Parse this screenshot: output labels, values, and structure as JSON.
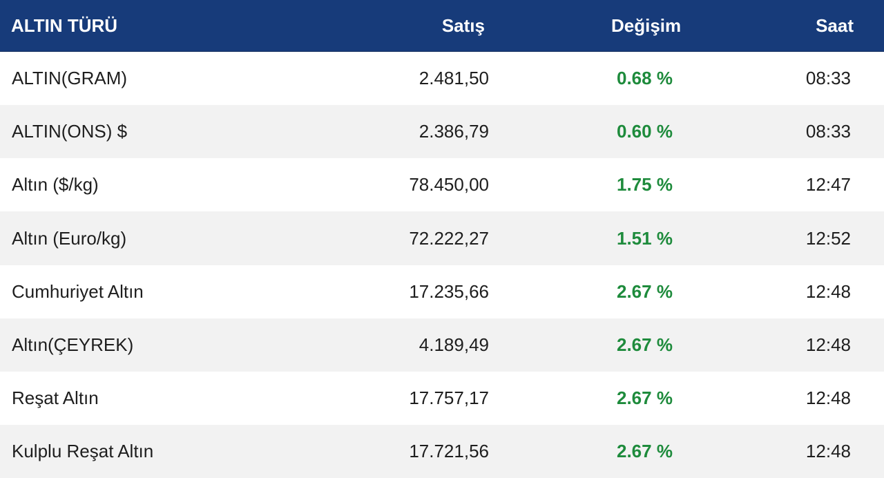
{
  "header": {
    "col_name": "ALTIN TÜRÜ",
    "col_sell": "Satış",
    "col_change": "Değişim",
    "col_time": "Saat"
  },
  "colors": {
    "header_bg": "#173b7a",
    "header_text": "#ffffff",
    "positive_change": "#1e8b3c",
    "row_alt_bg": "#f2f2f2"
  },
  "rows": [
    {
      "name": "ALTIN(GRAM)",
      "sell": "2.481,50",
      "change": "0.68 %",
      "time": "08:33"
    },
    {
      "name": "ALTIN(ONS) $",
      "sell": "2.386,79",
      "change": "0.60 %",
      "time": "08:33"
    },
    {
      "name": "Altın ($/kg)",
      "sell": "78.450,00",
      "change": "1.75 %",
      "time": "12:47"
    },
    {
      "name": "Altın (Euro/kg)",
      "sell": "72.222,27",
      "change": "1.51 %",
      "time": "12:52"
    },
    {
      "name": "Cumhuriyet Altın",
      "sell": "17.235,66",
      "change": "2.67 %",
      "time": "12:48"
    },
    {
      "name": "Altın(ÇEYREK)",
      "sell": "4.189,49",
      "change": "2.67 %",
      "time": "12:48"
    },
    {
      "name": "Reşat Altın",
      "sell": "17.757,17",
      "change": "2.67 %",
      "time": "12:48"
    },
    {
      "name": "Kulplu Reşat Altın",
      "sell": "17.721,56",
      "change": "2.67 %",
      "time": "12:48"
    }
  ]
}
